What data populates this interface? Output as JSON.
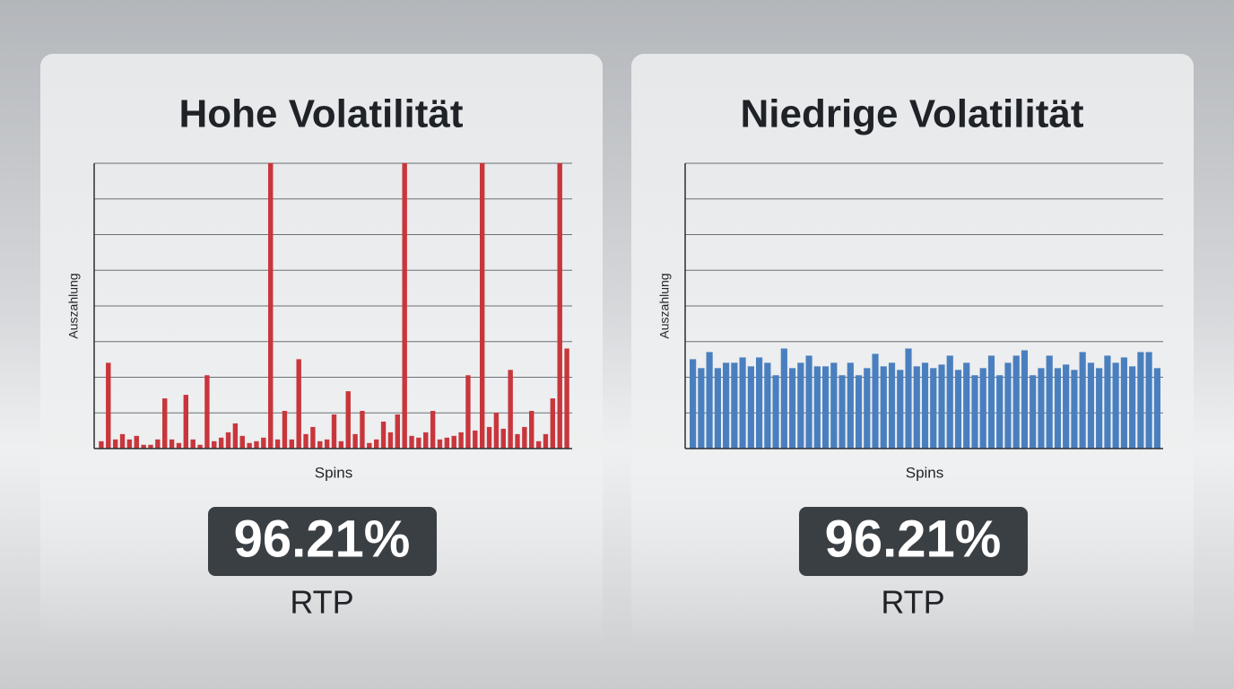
{
  "chart_data": [
    {
      "type": "bar",
      "title": "Hohe Volatilität",
      "ylabel": "Auszahlung",
      "xlabel": "Spins",
      "color": "#c8363c",
      "ylim": [
        0,
        8
      ],
      "yticks": [
        0,
        1,
        2,
        3,
        4,
        5,
        6,
        7,
        8
      ],
      "grid": true,
      "tick_labels": false,
      "values": [
        0.2,
        2.4,
        0.25,
        0.4,
        0.25,
        0.35,
        0.1,
        0.1,
        0.25,
        1.4,
        0.25,
        0.15,
        1.5,
        0.25,
        0.1,
        2.05,
        0.2,
        0.3,
        0.45,
        0.7,
        0.35,
        0.15,
        0.2,
        0.3,
        8,
        0.25,
        1.05,
        0.25,
        2.5,
        0.4,
        0.6,
        0.2,
        0.25,
        0.95,
        0.2,
        1.6,
        0.4,
        1.05,
        0.15,
        0.25,
        0.75,
        0.45,
        0.95,
        8,
        0.35,
        0.3,
        0.45,
        1.05,
        0.25,
        0.3,
        0.35,
        0.45,
        2.05,
        0.5,
        8,
        0.6,
        1.0,
        0.55,
        2.2,
        0.4,
        0.6,
        1.05,
        0.2,
        0.4,
        1.4,
        8,
        2.8
      ],
      "rtp_value": "96.21%",
      "rtp_label": "RTP"
    },
    {
      "type": "bar",
      "title": "Niedrige Volatilität",
      "ylabel": "Auszahlung",
      "xlabel": "Spins",
      "color": "#4a7fbf",
      "ylim": [
        0,
        8
      ],
      "yticks": [
        0,
        1,
        2,
        3,
        4,
        5,
        6,
        7,
        8
      ],
      "grid": true,
      "tick_labels": false,
      "values": [
        2.5,
        2.25,
        2.7,
        2.25,
        2.4,
        2.4,
        2.55,
        2.3,
        2.55,
        2.4,
        2.05,
        2.8,
        2.25,
        2.4,
        2.6,
        2.3,
        2.3,
        2.4,
        2.05,
        2.4,
        2.05,
        2.25,
        2.65,
        2.3,
        2.4,
        2.2,
        2.8,
        2.3,
        2.4,
        2.25,
        2.35,
        2.6,
        2.2,
        2.4,
        2.05,
        2.25,
        2.6,
        2.05,
        2.4,
        2.6,
        2.75,
        2.05,
        2.25,
        2.6,
        2.25,
        2.35,
        2.2,
        2.7,
        2.4,
        2.25,
        2.6,
        2.4,
        2.55,
        2.3,
        2.7,
        2.7,
        2.25
      ],
      "rtp_value": "96.21%",
      "rtp_label": "RTP"
    }
  ]
}
